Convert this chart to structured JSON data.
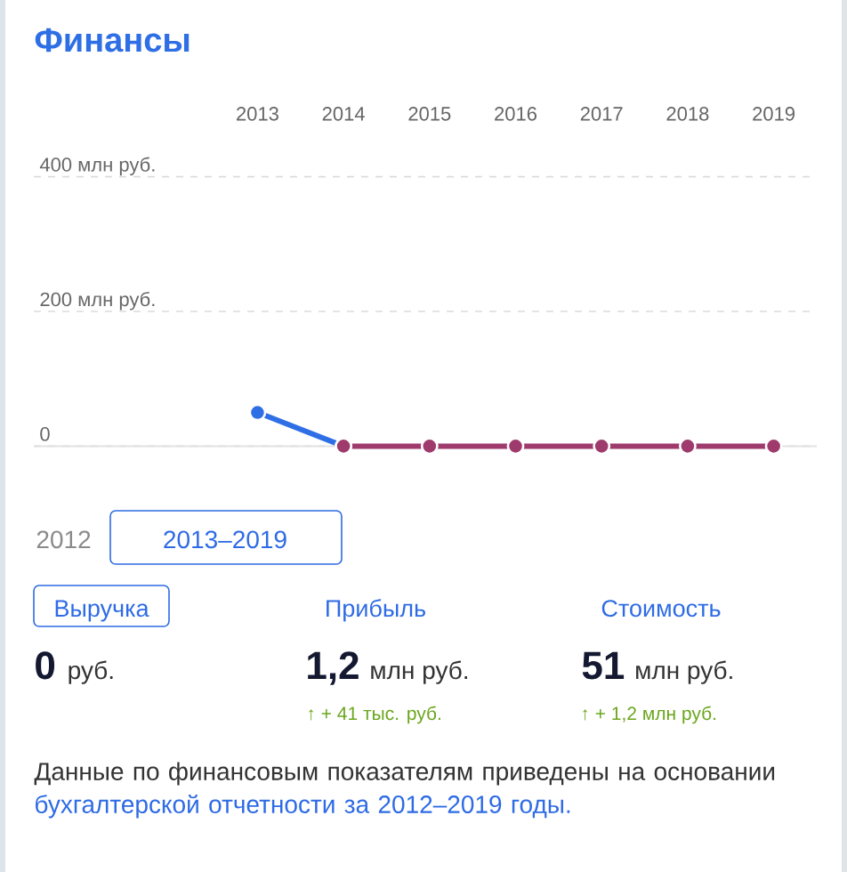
{
  "chart_data": [
    {
      "type": "line",
      "title": "Финансы",
      "x": [
        2013,
        2014,
        2015,
        2016,
        2017,
        2018,
        2019
      ],
      "series": [
        {
          "color": "#2f6fe6",
          "values": [
            50,
            0,
            null,
            null,
            null,
            null,
            null
          ]
        },
        {
          "color": "#9e3a6c",
          "values": [
            null,
            0,
            0,
            0,
            0,
            0,
            0
          ]
        }
      ],
      "xlim": [
        2010.4,
        2019.5
      ],
      "xticks": [
        2013,
        2014,
        2015,
        2016,
        2017,
        2018,
        2019
      ],
      "ylim": [
        0,
        400
      ],
      "yticks": [
        0,
        {
          "value": 200,
          "label": "200 млн руб."
        },
        {
          "value": 400,
          "label": "400 млн руб."
        }
      ],
      "grid": "y",
      "marker": "circle"
    },
    {
      "type": "other",
      "annotations": [
        "2012",
        "2013–2019",
        "Выручка",
        "Прибыль",
        "Стоимость",
        "0",
        "руб.",
        "1,2",
        "млн руб.",
        "51",
        "млн руб.",
        "↑ + 41 тыс. руб.",
        "↑ + 1,2 млн руб.",
        "Данные по финансовым показателям приведены на основании",
        "бухгалтерской отчетности за 2012–2019 годы."
      ]
    }
  ]
}
